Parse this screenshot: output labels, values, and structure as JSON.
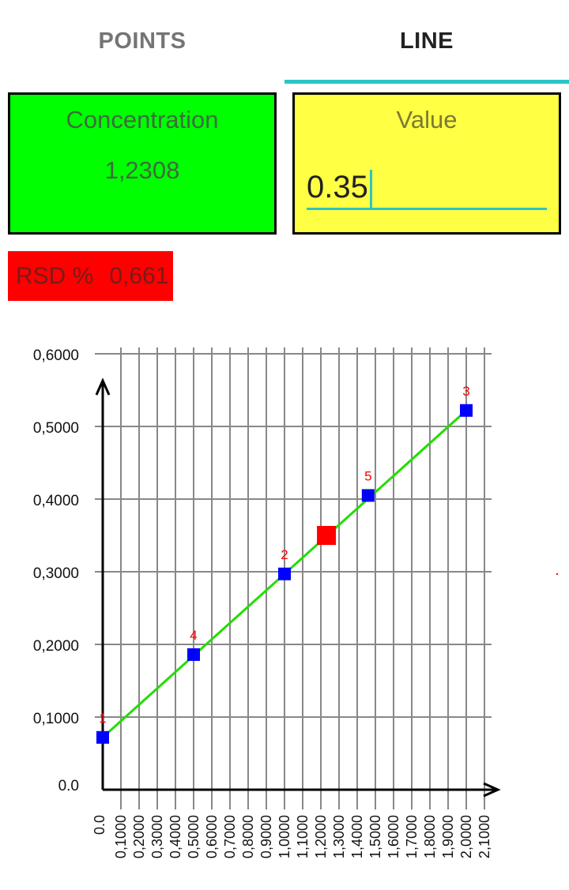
{
  "tabs": [
    {
      "label": "POINTS",
      "selected": false
    },
    {
      "label": "LINE",
      "selected": true
    }
  ],
  "concentration": {
    "title": "Concentration",
    "value": "1,2308"
  },
  "value_field": {
    "title": "Value",
    "value": "0.35"
  },
  "rsd": {
    "label": "RSD %",
    "value": "0,661"
  },
  "colors": {
    "tab_indicator": "#2ec4c4",
    "concentration_bg": "#00ff00",
    "value_bg": "#ffff44",
    "rsd_bg": "#ff0000",
    "line": "#22dd00",
    "point": "#0000ff",
    "result_point": "#ff0000",
    "point_label": "#ff0000"
  },
  "chart_data": {
    "type": "scatter",
    "x_ticks": [
      "0.0",
      "0,1000",
      "0,2000",
      "0,3000",
      "0,4000",
      "0,5000",
      "0,6000",
      "0,7000",
      "0,8000",
      "0,9000",
      "1,0000",
      "1,1000",
      "1,2000",
      "1,3000",
      "1,4000",
      "1,5000",
      "1,6000",
      "1,7000",
      "1,8000",
      "1,9000",
      "2,0000",
      "2,1000"
    ],
    "y_ticks": [
      "0.0",
      "0,1000",
      "0,2000",
      "0,3000",
      "0,4000",
      "0,5000",
      "0,6000"
    ],
    "xlim": [
      0,
      2.1
    ],
    "ylim": [
      0,
      0.6
    ],
    "grid": true,
    "points": [
      {
        "label": "1",
        "x": 0.0,
        "y": 0.072
      },
      {
        "label": "4",
        "x": 0.5,
        "y": 0.186
      },
      {
        "label": "2",
        "x": 1.0,
        "y": 0.297
      },
      {
        "label": "5",
        "x": 1.46,
        "y": 0.405
      },
      {
        "label": "3",
        "x": 2.0,
        "y": 0.522
      }
    ],
    "line": {
      "x": [
        0.0,
        2.0
      ],
      "y": [
        0.072,
        0.522
      ]
    },
    "result_point": {
      "x": 1.2308,
      "y": 0.35
    }
  }
}
